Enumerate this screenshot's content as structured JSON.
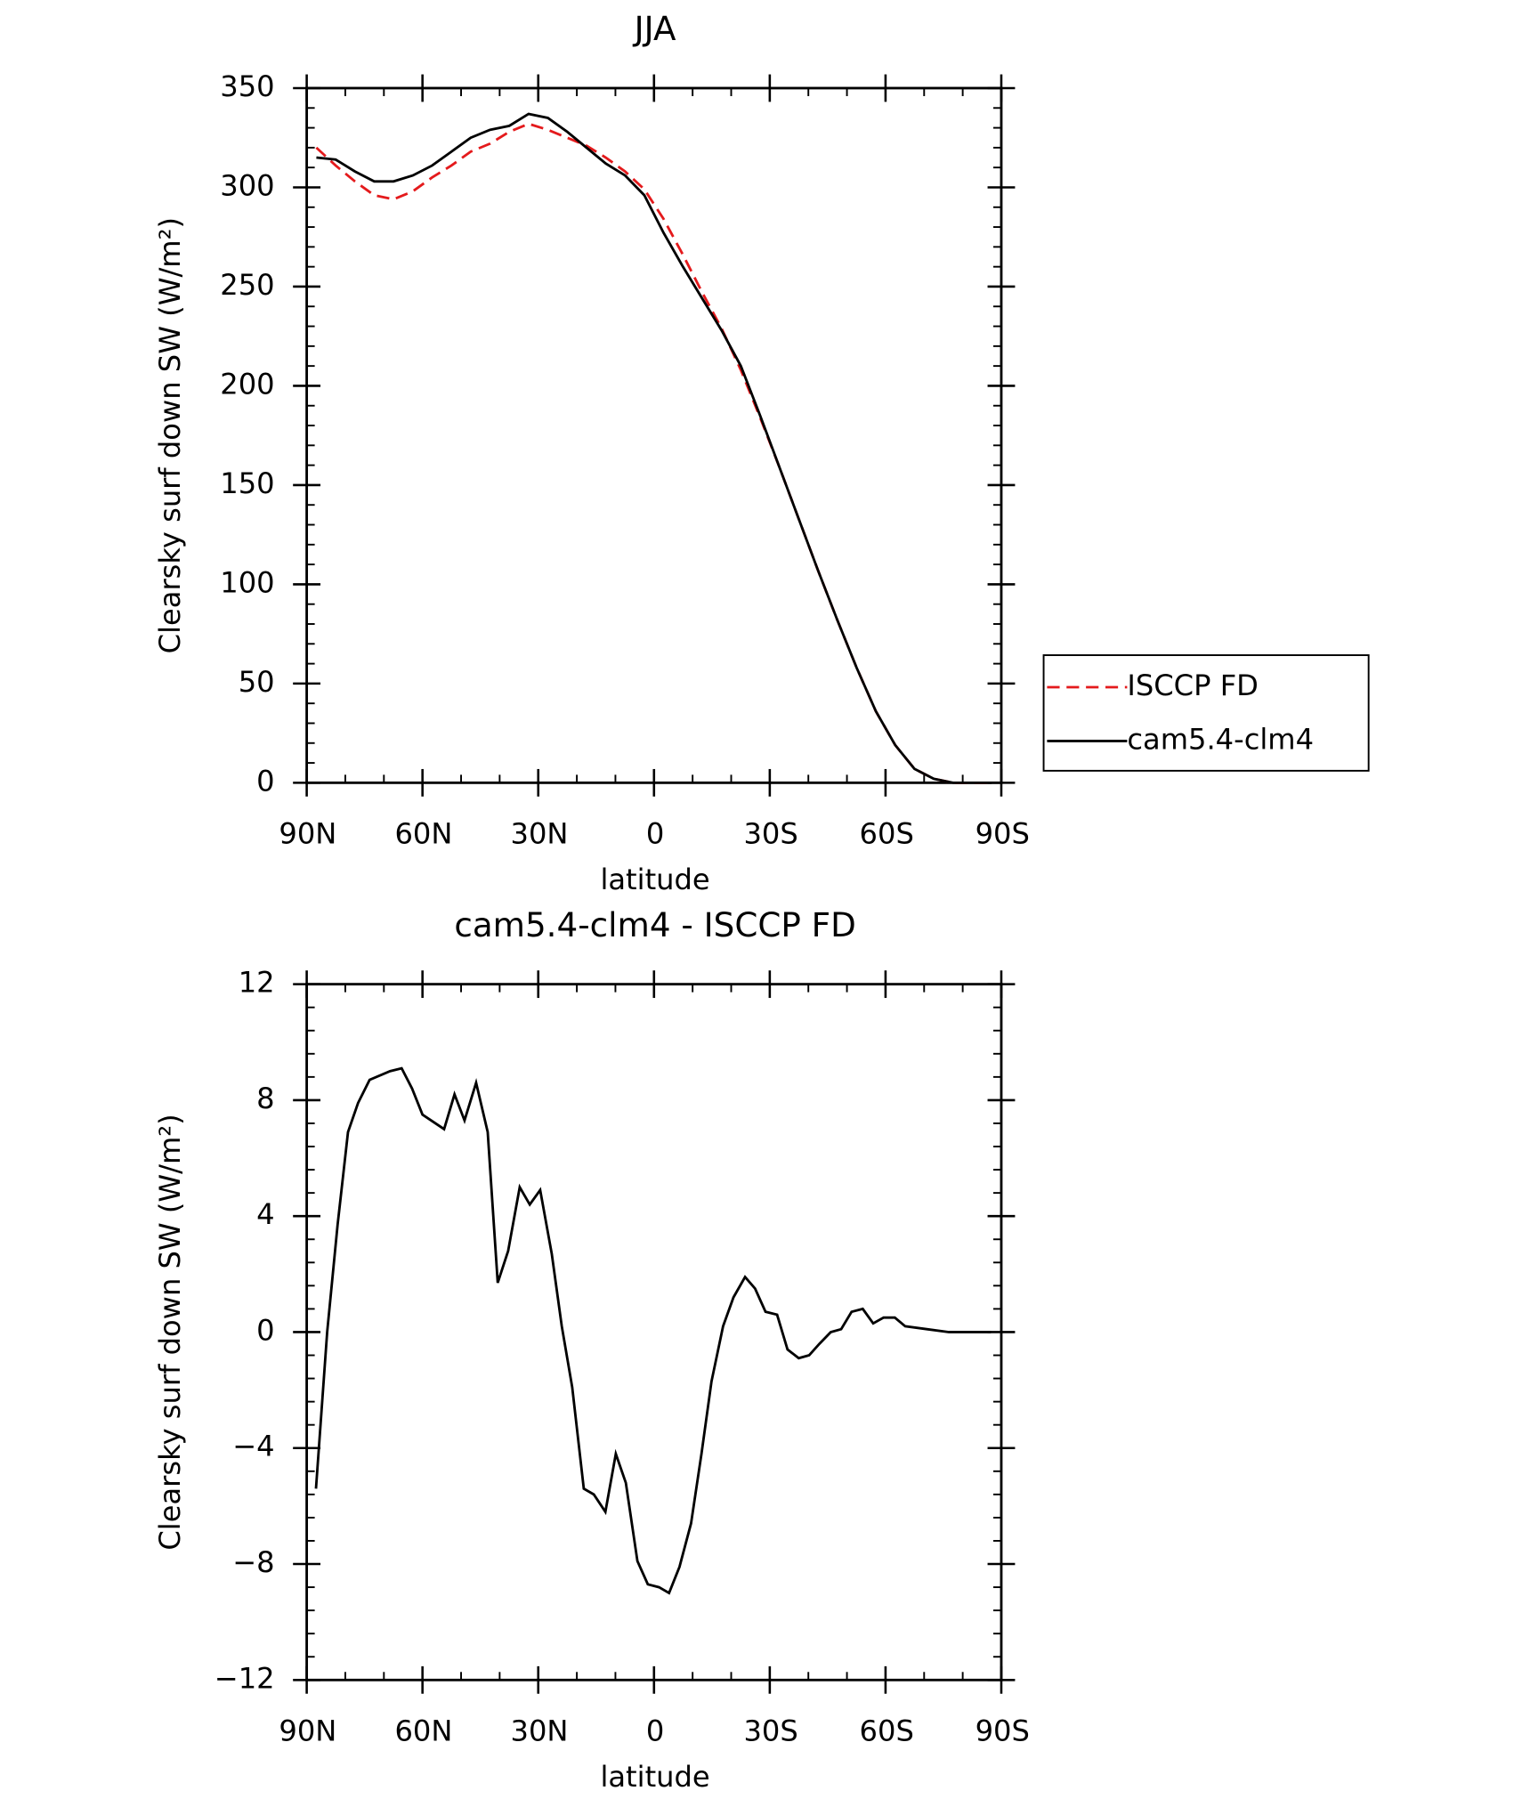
{
  "chart_data": [
    {
      "type": "line",
      "title": "JJA",
      "xlabel": "latitude",
      "ylabel": "Clearsky surf down SW (W/m²)",
      "x": [
        87.5,
        82.5,
        77.5,
        72.5,
        67.5,
        62.5,
        57.5,
        52.5,
        47.5,
        42.5,
        37.5,
        32.5,
        27.5,
        22.5,
        17.5,
        12.5,
        7.5,
        2.5,
        -2.5,
        -7.5,
        -12.5,
        -17.5,
        -22.5,
        -27.5,
        -32.5,
        -37.5,
        -42.5,
        -47.5,
        -52.5,
        -57.5,
        -62.5,
        -67.5,
        -72.5,
        -77.5,
        -82.5,
        -87.5
      ],
      "series": [
        {
          "name": "ISCCP FD",
          "color": "#e41a1c",
          "linestyle": "dashed",
          "values": [
            320,
            311,
            303,
            296,
            294,
            298,
            305,
            311,
            318,
            322,
            328,
            332,
            329,
            325,
            321,
            315,
            308,
            299,
            284,
            266,
            247,
            229,
            208,
            184,
            159,
            133,
            107,
            82,
            58,
            36,
            19,
            7,
            2,
            0,
            0,
            0
          ]
        },
        {
          "name": "cam5.4-clm4",
          "color": "#000000",
          "linestyle": "solid",
          "values": [
            315,
            314,
            308,
            303,
            303,
            306,
            311,
            318,
            325,
            329,
            331,
            337,
            335,
            328,
            320,
            312,
            306,
            296,
            277,
            260,
            244,
            228,
            210,
            185,
            159,
            133,
            107,
            82,
            58,
            36,
            19,
            7,
            2,
            0,
            0,
            0
          ]
        }
      ],
      "xlim": [
        90,
        -90
      ],
      "xticks": [
        {
          "value": 90,
          "label": "90N"
        },
        {
          "value": 60,
          "label": "60N"
        },
        {
          "value": 30,
          "label": "30N"
        },
        0,
        {
          "value": -30,
          "label": "30S"
        },
        {
          "value": -60,
          "label": "60S"
        },
        {
          "value": -90,
          "label": "90S"
        }
      ],
      "ylim": [
        0,
        350
      ],
      "yticks": [
        0,
        50,
        100,
        150,
        200,
        250,
        300,
        350
      ],
      "legend": "right"
    },
    {
      "type": "line",
      "title": "cam5.4-clm4 - ISCCP FD",
      "xlabel": "latitude",
      "ylabel": "Clearsky surf down SW (W/m²)",
      "x": [
        87.6,
        84.7,
        82,
        79.3,
        76.7,
        73.7,
        68.4,
        65.4,
        62.7,
        60,
        54.4,
        51.7,
        49.1,
        46.1,
        43.1,
        40.5,
        37.8,
        34.8,
        32.2,
        29.5,
        26.5,
        23.9,
        21.2,
        18.2,
        15.6,
        12.6,
        9.9,
        7.3,
        4.3,
        1.6,
        -1.3,
        -3.9,
        -6.6,
        -9.6,
        -12.3,
        -14.9,
        -17.9,
        -20.6,
        -23.6,
        -26.2,
        -28.9,
        -31.9,
        -34.6,
        -37.5,
        -40.2,
        -42.9,
        -45.8,
        -48.5,
        -51.2,
        -54.1,
        -56.8,
        -59.5,
        -62.4,
        -65.1,
        -70.7,
        -76.4,
        -79,
        -82,
        -87.3
      ],
      "series": [
        {
          "name": "cam5.4-clm4 - ISCCP FD",
          "color": "#000000",
          "linestyle": "solid",
          "values": [
            -5.4,
            0,
            3.7,
            6.9,
            7.9,
            8.7,
            9.0,
            9.1,
            8.4,
            7.5,
            7.0,
            8.2,
            7.3,
            8.6,
            6.9,
            1.7,
            2.8,
            5.0,
            4.4,
            4.9,
            2.7,
            0.2,
            -1.9,
            -5.4,
            -5.6,
            -6.2,
            -4.2,
            -5.2,
            -7.9,
            -8.7,
            -8.8,
            -9.0,
            -8.1,
            -6.6,
            -4.2,
            -1.7,
            0.2,
            1.2,
            1.9,
            1.5,
            0.7,
            0.6,
            -0.6,
            -0.9,
            -0.8,
            -0.4,
            0,
            0.1,
            0.7,
            0.8,
            0.3,
            0.5,
            0.5,
            0.2,
            0.1,
            0,
            0,
            0,
            0
          ]
        }
      ],
      "xlim": [
        90,
        -90
      ],
      "xticks": [
        {
          "value": 90,
          "label": "90N"
        },
        {
          "value": 60,
          "label": "60N"
        },
        {
          "value": 30,
          "label": "30N"
        },
        0,
        {
          "value": -30,
          "label": "30S"
        },
        {
          "value": -60,
          "label": "60S"
        },
        {
          "value": -90,
          "label": "90S"
        }
      ],
      "ylim": [
        -12,
        12
      ],
      "yticks": [
        {
          "value": -12,
          "label": "−12"
        },
        {
          "value": -8,
          "label": "−8"
        },
        {
          "value": -4,
          "label": "−4"
        },
        0,
        4,
        8,
        12
      ]
    }
  ]
}
